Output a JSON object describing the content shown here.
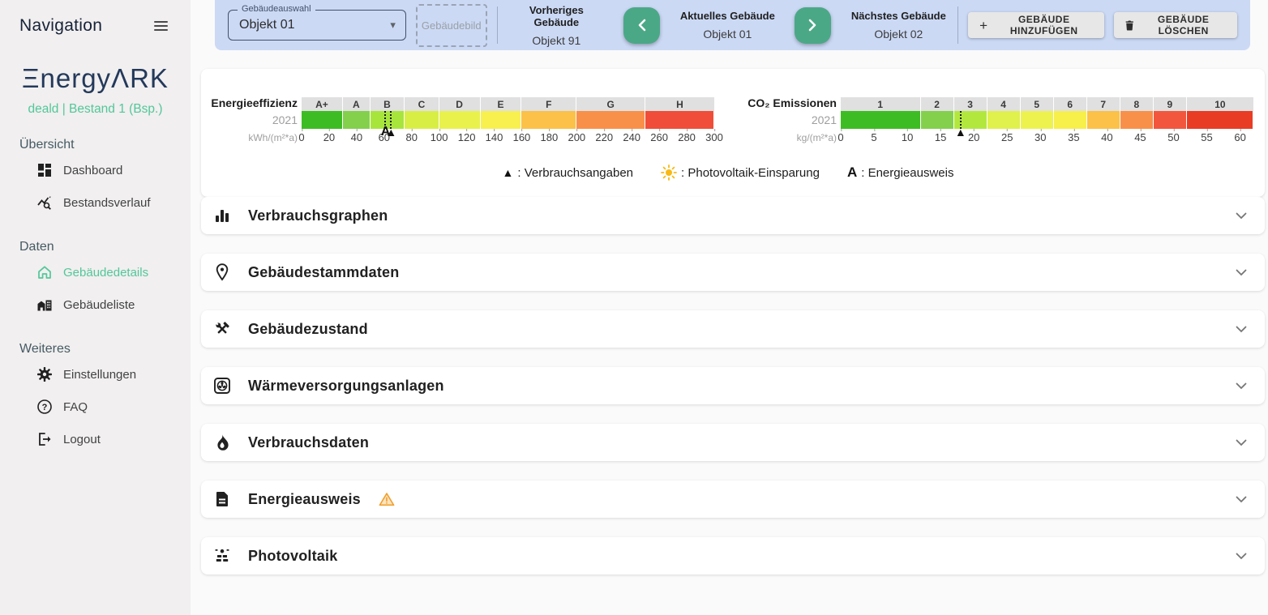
{
  "colors": {
    "accent_green": "#52c79b",
    "banner_blue": "#cbd9f5",
    "nav_button_green": "#4ba887",
    "logo_navy": "#23395b",
    "warning_orange": "#f0a030"
  },
  "sidebar": {
    "nav_title": "Navigation",
    "logo_text": "ΞnergyΛRK",
    "subtitle": "deald | Bestand 1 (Bsp.)",
    "section_overview": "Übersicht",
    "item_dashboard": "Dashboard",
    "item_bestandsverlauf": "Bestandsverlauf",
    "section_daten": "Daten",
    "item_gebaeudedetails": "Gebäudedetails",
    "item_gebaeudeliste": "Gebäudeliste",
    "section_weiteres": "Weiteres",
    "item_einstellungen": "Einstellungen",
    "item_faq": "FAQ",
    "item_logout": "Logout"
  },
  "banner": {
    "select_label": "Gebäudeauswahl",
    "select_value": "Objekt 01",
    "select_arrow": "▾",
    "image_placeholder": "Gebäudebild",
    "prev_label": "Vorheriges Gebäude",
    "prev_value": "Objekt 91",
    "current_label": "Aktuelles Gebäude",
    "current_value": "Objekt 01",
    "next_label": "Nächstes Gebäude",
    "next_value": "Objekt 02",
    "add_button_plus": "+",
    "add_button": "GEBÄUDE HINZUFÜGEN",
    "delete_button": "GEBÄUDE LÖSCHEN"
  },
  "legend": {
    "verbrauch_symbol": "▲",
    "verbrauch_label": ": Verbrauchsangaben",
    "pv_label": ": Photovoltaik-Einsparung",
    "ausweis_symbol": "A",
    "ausweis_label": ": Energieausweis"
  },
  "accordions": [
    {
      "label": "Verbrauchsgraphen",
      "icon": "bar-chart-icon"
    },
    {
      "label": "Gebäudestammdaten",
      "icon": "location-pin-icon"
    },
    {
      "label": "Gebäudezustand",
      "icon": "tools-icon"
    },
    {
      "label": "Wärmeversorgungsanlagen",
      "icon": "fan-icon"
    },
    {
      "label": "Verbrauchsdaten",
      "icon": "flame-icon"
    },
    {
      "label": "Energieausweis",
      "icon": "document-icon",
      "warning": true
    },
    {
      "label": "Photovoltaik",
      "icon": "solar-panel-icon"
    }
  ],
  "chart_data": [
    {
      "type": "scale-bar",
      "title": "Energieeffizienz",
      "year": "2021",
      "unit": "kWh/(m²*a)",
      "axis_min": 0,
      "axis_max": 300,
      "tick_step": 20,
      "bands": [
        {
          "label": "A+",
          "from": 0,
          "to": 30,
          "color": "#3dbd23"
        },
        {
          "label": "A",
          "from": 30,
          "to": 50,
          "color": "#84d04d"
        },
        {
          "label": "B",
          "from": 50,
          "to": 75,
          "color": "#a8e53c"
        },
        {
          "label": "C",
          "from": 75,
          "to": 100,
          "color": "#d9ee45"
        },
        {
          "label": "D",
          "from": 100,
          "to": 130,
          "color": "#e9f14c"
        },
        {
          "label": "E",
          "from": 130,
          "to": 160,
          "color": "#f7f04e"
        },
        {
          "label": "F",
          "from": 160,
          "to": 200,
          "color": "#fbc148"
        },
        {
          "label": "G",
          "from": 200,
          "to": 250,
          "color": "#f99049"
        },
        {
          "label": "H",
          "from": 250,
          "to": 300,
          "color": "#f04e3a"
        }
      ],
      "markers": [
        {
          "name": "energieausweis",
          "symbol": "A",
          "value": 61
        },
        {
          "name": "verbrauchsangaben",
          "symbol": "▲",
          "value": 65
        }
      ]
    },
    {
      "type": "scale-bar",
      "title": "CO₂ Emissionen",
      "year": "2021",
      "unit": "kg/(m²*a)",
      "axis_min": 0,
      "axis_max": 62,
      "tick_step": 5,
      "tick_label_max": 60,
      "bands": [
        {
          "label": "1",
          "from": 0,
          "to": 12,
          "color": "#3dbd23"
        },
        {
          "label": "2",
          "from": 12,
          "to": 17,
          "color": "#84d04d"
        },
        {
          "label": "3",
          "from": 17,
          "to": 22,
          "color": "#b2e83e"
        },
        {
          "label": "4",
          "from": 22,
          "to": 27,
          "color": "#e0f04c"
        },
        {
          "label": "5",
          "from": 27,
          "to": 32,
          "color": "#edf24e"
        },
        {
          "label": "6",
          "from": 32,
          "to": 37,
          "color": "#f7ef4a"
        },
        {
          "label": "7",
          "from": 37,
          "to": 42,
          "color": "#fbc148"
        },
        {
          "label": "8",
          "from": 42,
          "to": 47,
          "color": "#f99049"
        },
        {
          "label": "9",
          "from": 47,
          "to": 52,
          "color": "#f2573e"
        },
        {
          "label": "10",
          "from": 52,
          "to": 62,
          "color": "#e93c25"
        }
      ],
      "markers": [
        {
          "name": "verbrauchsangaben",
          "symbol": "▲",
          "value": 18
        }
      ]
    }
  ]
}
